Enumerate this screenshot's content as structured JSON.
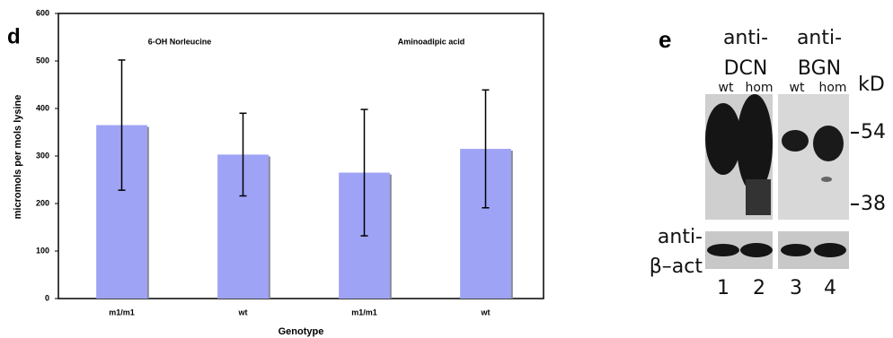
{
  "chart_data": {
    "type": "bar",
    "panel_label": "d",
    "annotations": [
      "6-OH Norleucine",
      "Aminoadipic acid"
    ],
    "categories": [
      "m1/m1",
      "wt",
      "m1/m1",
      "wt"
    ],
    "values": [
      365,
      303,
      265,
      315
    ],
    "errors": [
      137,
      87,
      133,
      124
    ],
    "color": "#9ea3f5",
    "x_label": "Genotype",
    "y_label": "micromols per mols lysine",
    "ylim": [
      0,
      600
    ],
    "yticks": [
      0,
      100,
      200,
      300,
      400,
      500,
      600
    ],
    "grid": false
  },
  "panel_e": {
    "label": "e",
    "columns": [
      {
        "antibody": [
          "anti-",
          "DCN"
        ],
        "lanes": [
          "wt",
          "hom"
        ]
      },
      {
        "antibody": [
          "anti-",
          "BGN"
        ],
        "lanes": [
          "wt",
          "hom"
        ]
      }
    ],
    "unit": "kD",
    "markers": [
      "54",
      "38"
    ],
    "loading_control": [
      "anti-",
      "β–act"
    ],
    "lane_numbers": [
      "1",
      "2",
      "3",
      "4"
    ]
  }
}
